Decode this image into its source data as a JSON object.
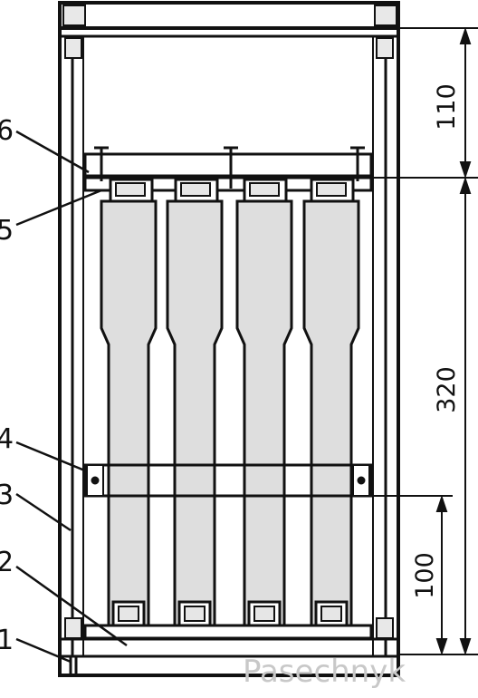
{
  "part_labels": [
    "6",
    "5",
    "4",
    "3",
    "2",
    "1"
  ],
  "dimensions": [
    "110",
    "320",
    "100"
  ],
  "watermark": "Pasechnyk"
}
